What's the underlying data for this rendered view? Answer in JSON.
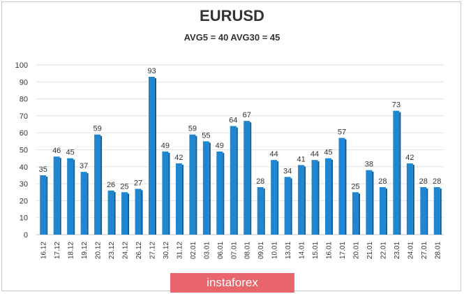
{
  "chart_data": {
    "type": "bar",
    "title": "EURUSD",
    "subtitle": "AVG5 = 40 AVG30 = 45",
    "categories": [
      "16.12",
      "17.12",
      "18.12",
      "19.12",
      "20.12",
      "23.12",
      "24.12",
      "26.12",
      "27.12",
      "30.12",
      "31.12",
      "02.01",
      "03.01",
      "06.01",
      "07.01",
      "08.01",
      "09.01",
      "10.01",
      "13.01",
      "14.01",
      "15.01",
      "16.01",
      "17.01",
      "20.01",
      "21.01",
      "22.01",
      "23.01",
      "24.01",
      "27.01",
      "28.01"
    ],
    "values": [
      35,
      46,
      45,
      37,
      59,
      26,
      25,
      27,
      93,
      49,
      42,
      59,
      55,
      49,
      64,
      67,
      28,
      44,
      34,
      41,
      44,
      45,
      57,
      25,
      38,
      28,
      73,
      42,
      28,
      28
    ],
    "ylim": [
      0,
      100
    ],
    "yticks": [
      0,
      10,
      20,
      30,
      40,
      50,
      60,
      70,
      80,
      90,
      100
    ],
    "grid": true,
    "bar_color": "#1f86cf",
    "legend": "none"
  },
  "watermark": "instaforex"
}
